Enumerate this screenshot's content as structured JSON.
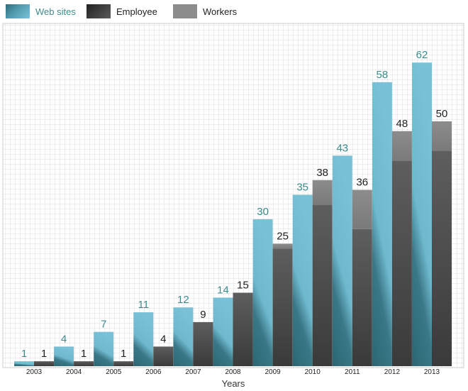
{
  "chart_data": {
    "type": "bar",
    "title": "",
    "xlabel": "Years",
    "ylabel": "",
    "ylim": [
      0,
      70
    ],
    "grid": true,
    "legend_position": "top-left",
    "categories": [
      "2003",
      "2004",
      "2005",
      "2006",
      "2007",
      "2008",
      "2009",
      "2010",
      "2011",
      "2012",
      "2013"
    ],
    "series": [
      {
        "name": "Web sites",
        "color": "#71bcd3",
        "label_color": "#3f8b8c",
        "values": [
          1,
          4,
          7,
          11,
          12,
          14,
          30,
          35,
          43,
          58,
          62
        ]
      },
      {
        "name": "Employee",
        "color": "#3c3c3c",
        "label_color": "#222222",
        "values": [
          1,
          1,
          1,
          4,
          9,
          15,
          24,
          33,
          28,
          42,
          44
        ]
      },
      {
        "name": "Workers",
        "color": "#8c8c8c",
        "label_color": "#222222",
        "values": [
          0,
          0,
          0,
          0,
          0,
          0,
          1,
          5,
          8,
          6,
          6
        ]
      }
    ],
    "stack_totals": [
      1,
      1,
      1,
      4,
      9,
      15,
      25,
      38,
      36,
      48,
      50
    ]
  }
}
